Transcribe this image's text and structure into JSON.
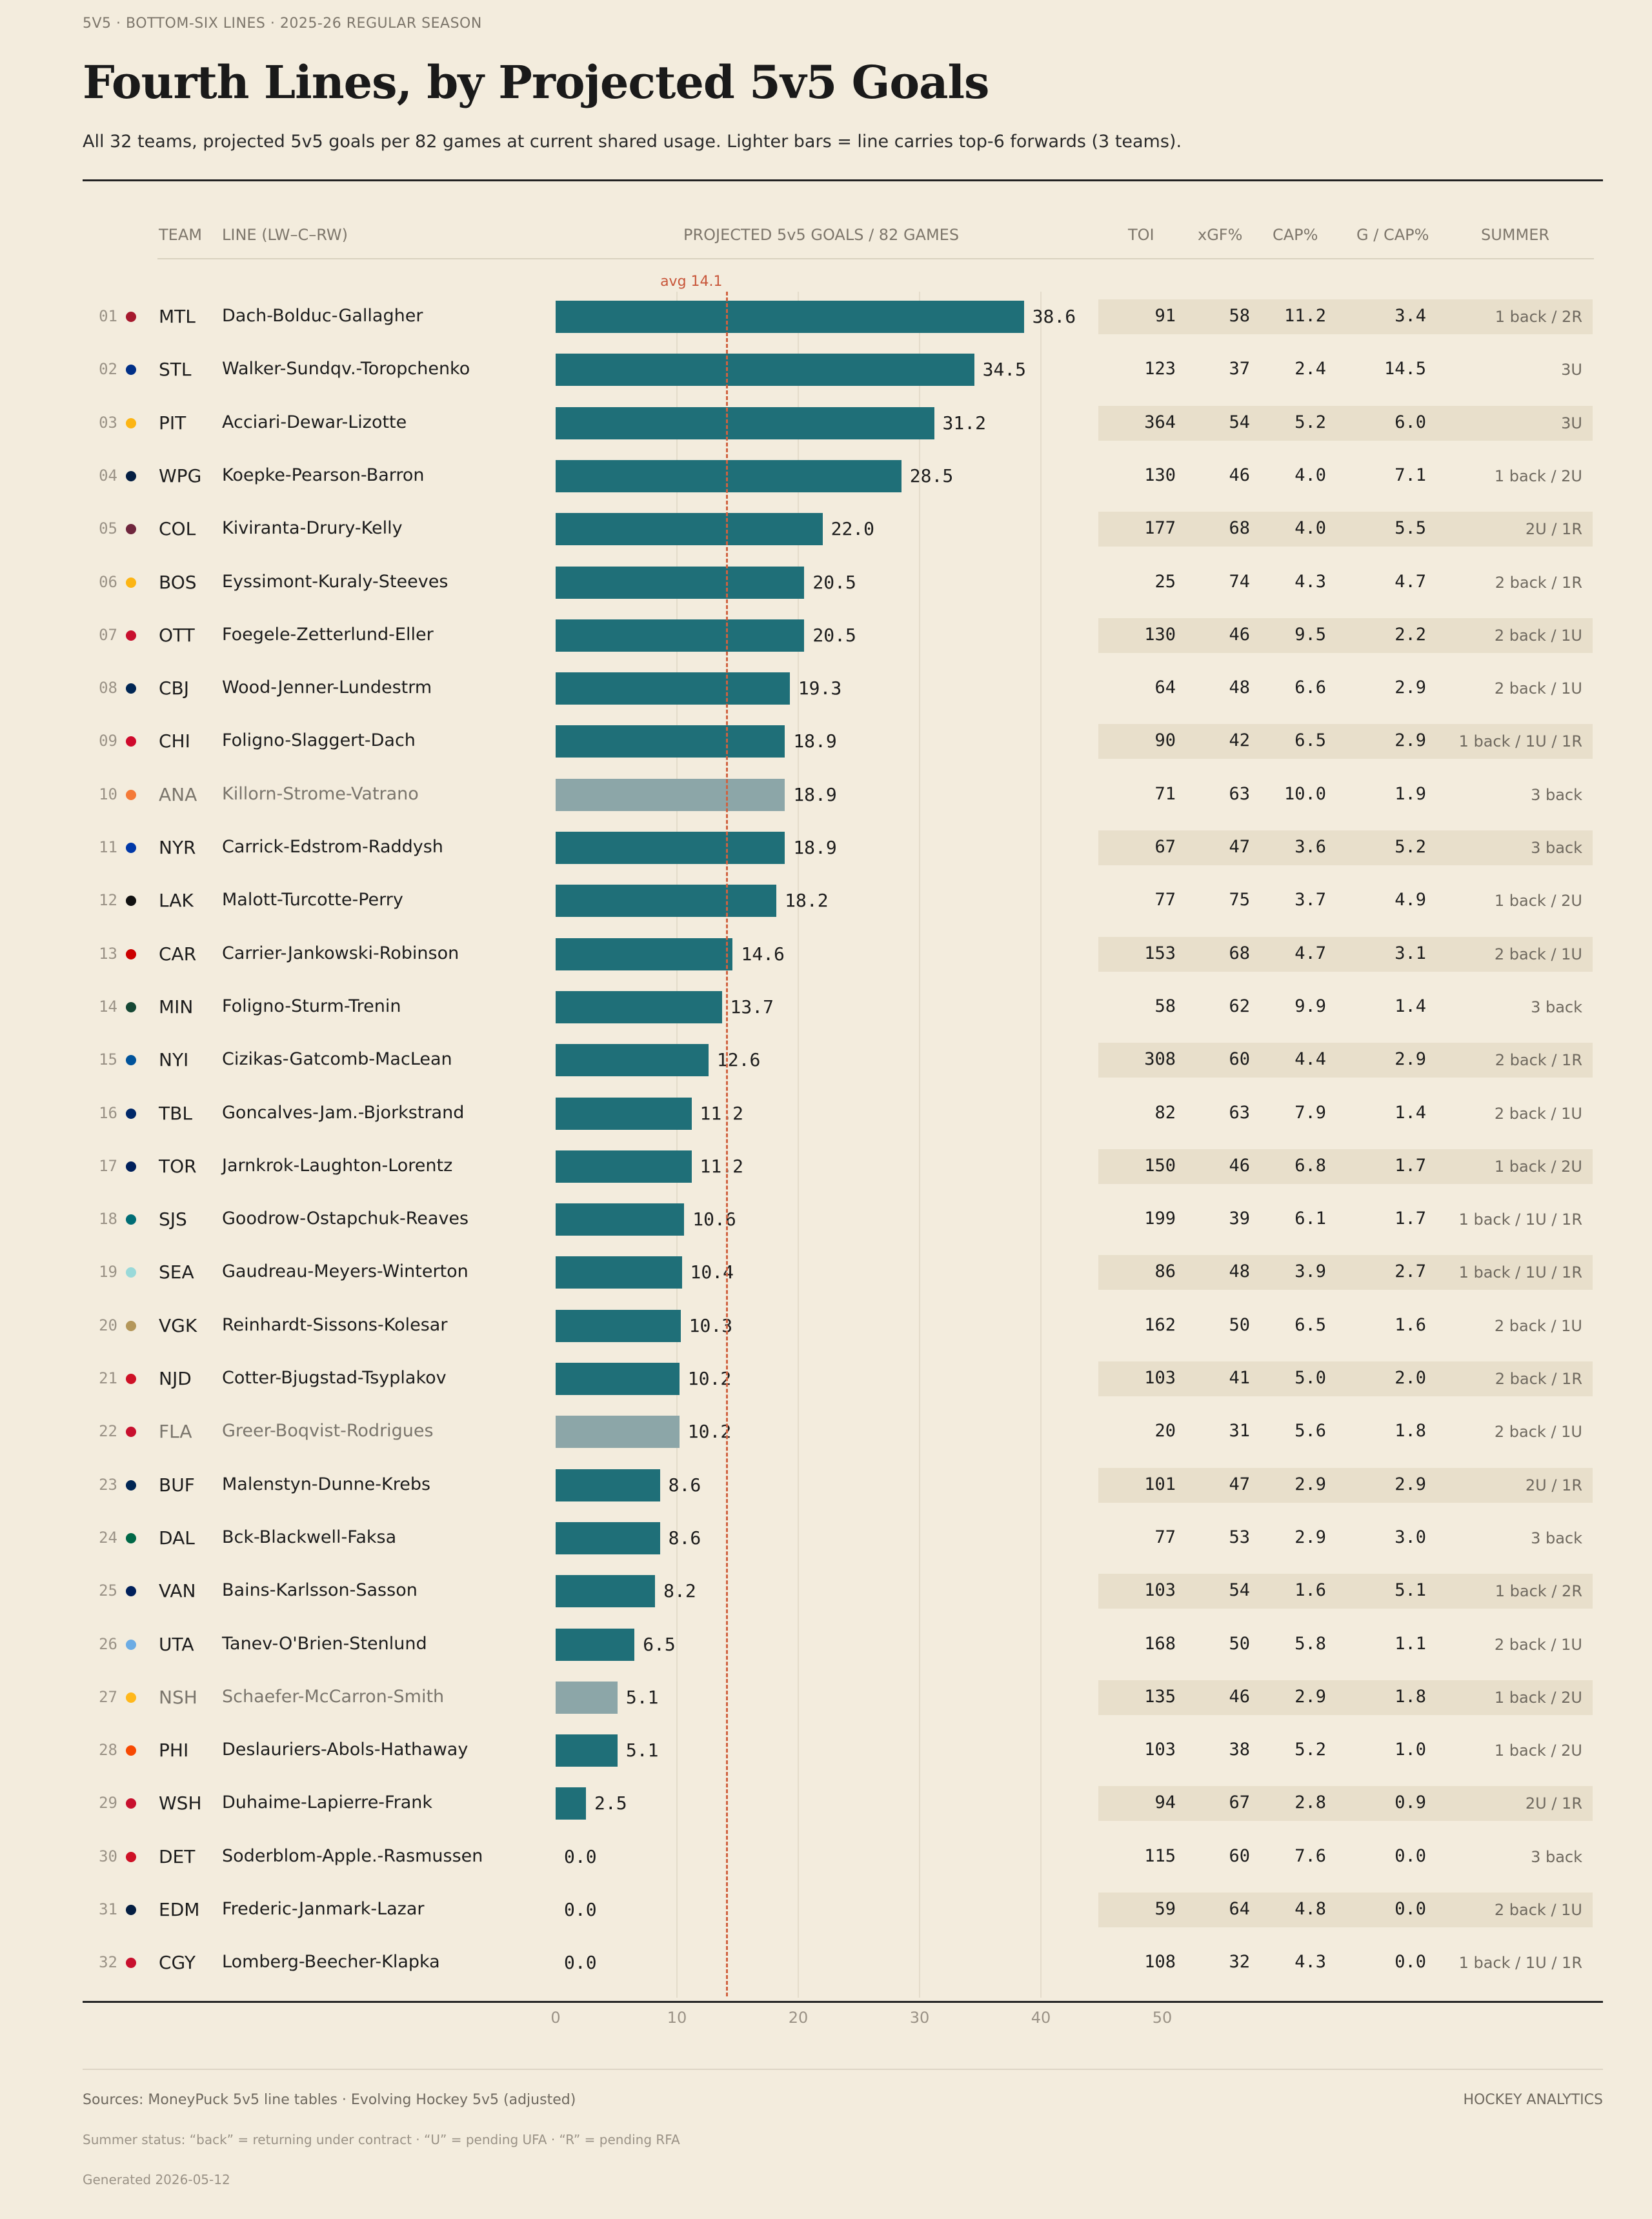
{
  "kicker": "5V5 · BOTTOM-SIX LINES · 2025-26 REGULAR SEASON",
  "title": "Fourth Lines, by Projected 5v5 Goals",
  "subtitle": "All 32 teams, projected 5v5 goals per 82 games at current shared usage. Lighter bars = line carries top-6 forwards (3 teams).",
  "columns": {
    "team": "TEAM",
    "line": "LINE  (LW–C–RW)",
    "chart": "PROJECTED 5v5 GOALS / 82 GAMES",
    "toi": "TOI",
    "xgf": "xGF%",
    "cap": "CAP%",
    "gcap": "G / CAP%",
    "summer": "SUMMER"
  },
  "colors": {
    "bar": "#1f6f78",
    "bar_top6": "#8ca6a8",
    "avg_line": "#d0613f",
    "stripe": "#e8dfcb"
  },
  "avg_label": "avg 14.1",
  "chart_data": {
    "type": "bar",
    "orientation": "horizontal",
    "title": "Fourth Lines, by Projected 5v5 Goals",
    "xlabel": "",
    "x_ticks": [
      "0",
      "10",
      "20",
      "30",
      "40",
      "50"
    ],
    "xlim": [
      0,
      50
    ],
    "grid": true,
    "avg": 14.1,
    "rows": [
      {
        "rank": "01",
        "team": "MTL",
        "dot": "#a6192e",
        "line": "Dach-Bolduc-Gallagher",
        "goals": 38.6,
        "goals_label": "38.6",
        "top6": false,
        "toi": "91",
        "xgf": "58",
        "cap": "11.2",
        "gcap": "3.4",
        "summer": "1 back / 2R"
      },
      {
        "rank": "02",
        "team": "STL",
        "dot": "#002f87",
        "line": "Walker-Sundqv.-Toropchenko",
        "goals": 34.5,
        "goals_label": "34.5",
        "top6": false,
        "toi": "123",
        "xgf": "37",
        "cap": "2.4",
        "gcap": "14.5",
        "summer": "3U"
      },
      {
        "rank": "03",
        "team": "PIT",
        "dot": "#fcb514",
        "line": "Acciari-Dewar-Lizotte",
        "goals": 31.2,
        "goals_label": "31.2",
        "top6": false,
        "toi": "364",
        "xgf": "54",
        "cap": "5.2",
        "gcap": "6.0",
        "summer": "3U"
      },
      {
        "rank": "04",
        "team": "WPG",
        "dot": "#041e42",
        "line": "Koepke-Pearson-Barron",
        "goals": 28.5,
        "goals_label": "28.5",
        "top6": false,
        "toi": "130",
        "xgf": "46",
        "cap": "4.0",
        "gcap": "7.1",
        "summer": "1 back / 2U"
      },
      {
        "rank": "05",
        "team": "COL",
        "dot": "#6f263d",
        "line": "Kiviranta-Drury-Kelly",
        "goals": 22.0,
        "goals_label": "22.0",
        "top6": false,
        "toi": "177",
        "xgf": "68",
        "cap": "4.0",
        "gcap": "5.5",
        "summer": "2U / 1R"
      },
      {
        "rank": "06",
        "team": "BOS",
        "dot": "#fcb514",
        "line": "Eyssimont-Kuraly-Steeves",
        "goals": 20.5,
        "goals_label": "20.5",
        "top6": false,
        "toi": "25",
        "xgf": "74",
        "cap": "4.3",
        "gcap": "4.7",
        "summer": "2 back / 1R"
      },
      {
        "rank": "07",
        "team": "OTT",
        "dot": "#c8102e",
        "line": "Foegele-Zetterlund-Eller",
        "goals": 20.5,
        "goals_label": "20.5",
        "top6": false,
        "toi": "130",
        "xgf": "46",
        "cap": "9.5",
        "gcap": "2.2",
        "summer": "2 back / 1U"
      },
      {
        "rank": "08",
        "team": "CBJ",
        "dot": "#002654",
        "line": "Wood-Jenner-Lundestrm",
        "goals": 19.3,
        "goals_label": "19.3",
        "top6": false,
        "toi": "64",
        "xgf": "48",
        "cap": "6.6",
        "gcap": "2.9",
        "summer": "2 back / 1U"
      },
      {
        "rank": "09",
        "team": "CHI",
        "dot": "#cf0a2c",
        "line": "Foligno-Slaggert-Dach",
        "goals": 18.9,
        "goals_label": "18.9",
        "top6": false,
        "toi": "90",
        "xgf": "42",
        "cap": "6.5",
        "gcap": "2.9",
        "summer": "1 back / 1U / 1R"
      },
      {
        "rank": "10",
        "team": "ANA",
        "dot": "#f47a38",
        "line": "Killorn-Strome-Vatrano",
        "goals": 18.9,
        "goals_label": "18.9",
        "top6": true,
        "toi": "71",
        "xgf": "63",
        "cap": "10.0",
        "gcap": "1.9",
        "summer": "3 back"
      },
      {
        "rank": "11",
        "team": "NYR",
        "dot": "#0038a8",
        "line": "Carrick-Edstrom-Raddysh",
        "goals": 18.9,
        "goals_label": "18.9",
        "top6": false,
        "toi": "67",
        "xgf": "47",
        "cap": "3.6",
        "gcap": "5.2",
        "summer": "3 back"
      },
      {
        "rank": "12",
        "team": "LAK",
        "dot": "#111111",
        "line": "Malott-Turcotte-Perry",
        "goals": 18.2,
        "goals_label": "18.2",
        "top6": false,
        "toi": "77",
        "xgf": "75",
        "cap": "3.7",
        "gcap": "4.9",
        "summer": "1 back / 2U"
      },
      {
        "rank": "13",
        "team": "CAR",
        "dot": "#cc0000",
        "line": "Carrier-Jankowski-Robinson",
        "goals": 14.6,
        "goals_label": "14.6",
        "top6": false,
        "toi": "153",
        "xgf": "68",
        "cap": "4.7",
        "gcap": "3.1",
        "summer": "2 back / 1U"
      },
      {
        "rank": "14",
        "team": "MIN",
        "dot": "#154734",
        "line": "Foligno-Sturm-Trenin",
        "goals": 13.7,
        "goals_label": "13.7",
        "top6": false,
        "toi": "58",
        "xgf": "62",
        "cap": "9.9",
        "gcap": "1.4",
        "summer": "3 back"
      },
      {
        "rank": "15",
        "team": "NYI",
        "dot": "#00539b",
        "line": "Cizikas-Gatcomb-MacLean",
        "goals": 12.6,
        "goals_label": "12.6",
        "top6": false,
        "toi": "308",
        "xgf": "60",
        "cap": "4.4",
        "gcap": "2.9",
        "summer": "2 back / 1R"
      },
      {
        "rank": "16",
        "team": "TBL",
        "dot": "#002868",
        "line": "Goncalves-Jam.-Bjorkstrand",
        "goals": 11.2,
        "goals_label": "11.2",
        "top6": false,
        "toi": "82",
        "xgf": "63",
        "cap": "7.9",
        "gcap": "1.4",
        "summer": "2 back / 1U"
      },
      {
        "rank": "17",
        "team": "TOR",
        "dot": "#00205b",
        "line": "Jarnkrok-Laughton-Lorentz",
        "goals": 11.2,
        "goals_label": "11.2",
        "top6": false,
        "toi": "150",
        "xgf": "46",
        "cap": "6.8",
        "gcap": "1.7",
        "summer": "1 back / 2U"
      },
      {
        "rank": "18",
        "team": "SJS",
        "dot": "#006d75",
        "line": "Goodrow-Ostapchuk-Reaves",
        "goals": 10.6,
        "goals_label": "10.6",
        "top6": false,
        "toi": "199",
        "xgf": "39",
        "cap": "6.1",
        "gcap": "1.7",
        "summer": "1 back / 1U / 1R"
      },
      {
        "rank": "19",
        "team": "SEA",
        "dot": "#99d9d9",
        "line": "Gaudreau-Meyers-Winterton",
        "goals": 10.4,
        "goals_label": "10.4",
        "top6": false,
        "toi": "86",
        "xgf": "48",
        "cap": "3.9",
        "gcap": "2.7",
        "summer": "1 back / 1U / 1R"
      },
      {
        "rank": "20",
        "team": "VGK",
        "dot": "#b4975a",
        "line": "Reinhardt-Sissons-Kolesar",
        "goals": 10.3,
        "goals_label": "10.3",
        "top6": false,
        "toi": "162",
        "xgf": "50",
        "cap": "6.5",
        "gcap": "1.6",
        "summer": "2 back / 1U"
      },
      {
        "rank": "21",
        "team": "NJD",
        "dot": "#ce1126",
        "line": "Cotter-Bjugstad-Tsyplakov",
        "goals": 10.2,
        "goals_label": "10.2",
        "top6": false,
        "toi": "103",
        "xgf": "41",
        "cap": "5.0",
        "gcap": "2.0",
        "summer": "2 back / 1R"
      },
      {
        "rank": "22",
        "team": "FLA",
        "dot": "#c8102e",
        "line": "Greer-Boqvist-Rodrigues",
        "goals": 10.2,
        "goals_label": "10.2",
        "top6": true,
        "toi": "20",
        "xgf": "31",
        "cap": "5.6",
        "gcap": "1.8",
        "summer": "2 back / 1U"
      },
      {
        "rank": "23",
        "team": "BUF",
        "dot": "#002654",
        "line": "Malenstyn-Dunne-Krebs",
        "goals": 8.6,
        "goals_label": "8.6",
        "top6": false,
        "toi": "101",
        "xgf": "47",
        "cap": "2.9",
        "gcap": "2.9",
        "summer": "2U / 1R"
      },
      {
        "rank": "24",
        "team": "DAL",
        "dot": "#006847",
        "line": "Bck-Blackwell-Faksa",
        "goals": 8.6,
        "goals_label": "8.6",
        "top6": false,
        "toi": "77",
        "xgf": "53",
        "cap": "2.9",
        "gcap": "3.0",
        "summer": "3 back"
      },
      {
        "rank": "25",
        "team": "VAN",
        "dot": "#00205b",
        "line": "Bains-Karlsson-Sasson",
        "goals": 8.2,
        "goals_label": "8.2",
        "top6": false,
        "toi": "103",
        "xgf": "54",
        "cap": "1.6",
        "gcap": "5.1",
        "summer": "1 back / 2R"
      },
      {
        "rank": "26",
        "team": "UTA",
        "dot": "#6cace4",
        "line": "Tanev-O'Brien-Stenlund",
        "goals": 6.5,
        "goals_label": "6.5",
        "top6": false,
        "toi": "168",
        "xgf": "50",
        "cap": "5.8",
        "gcap": "1.1",
        "summer": "2 back / 1U"
      },
      {
        "rank": "27",
        "team": "NSH",
        "dot": "#ffb81c",
        "line": "Schaefer-McCarron-Smith",
        "goals": 5.1,
        "goals_label": "5.1",
        "top6": true,
        "toi": "135",
        "xgf": "46",
        "cap": "2.9",
        "gcap": "1.8",
        "summer": "1 back / 2U"
      },
      {
        "rank": "28",
        "team": "PHI",
        "dot": "#f74902",
        "line": "Deslauriers-Abols-Hathaway",
        "goals": 5.1,
        "goals_label": "5.1",
        "top6": false,
        "toi": "103",
        "xgf": "38",
        "cap": "5.2",
        "gcap": "1.0",
        "summer": "1 back / 2U"
      },
      {
        "rank": "29",
        "team": "WSH",
        "dot": "#c8102e",
        "line": "Duhaime-Lapierre-Frank",
        "goals": 2.5,
        "goals_label": "2.5",
        "top6": false,
        "toi": "94",
        "xgf": "67",
        "cap": "2.8",
        "gcap": "0.9",
        "summer": "2U / 1R"
      },
      {
        "rank": "30",
        "team": "DET",
        "dot": "#ce1126",
        "line": "Soderblom-Apple.-Rasmussen",
        "goals": 0.0,
        "goals_label": "0.0",
        "top6": false,
        "toi": "115",
        "xgf": "60",
        "cap": "7.6",
        "gcap": "0.0",
        "summer": "3 back"
      },
      {
        "rank": "31",
        "team": "EDM",
        "dot": "#041e42",
        "line": "Frederic-Janmark-Lazar",
        "goals": 0.0,
        "goals_label": "0.0",
        "top6": false,
        "toi": "59",
        "xgf": "64",
        "cap": "4.8",
        "gcap": "0.0",
        "summer": "2 back / 1U"
      },
      {
        "rank": "32",
        "team": "CGY",
        "dot": "#c8102e",
        "line": "Lomberg-Beecher-Klapka",
        "goals": 0.0,
        "goals_label": "0.0",
        "top6": false,
        "toi": "108",
        "xgf": "32",
        "cap": "4.3",
        "gcap": "0.0",
        "summer": "1 back / 1U / 1R"
      }
    ]
  },
  "footer": {
    "sources": "Sources: MoneyPuck 5v5 line tables · Evolving Hockey 5v5 (adjusted)",
    "brand": "HOCKEY ANALYTICS",
    "note": "Summer status: “back” = returning under contract · “U” = pending UFA · “R” = pending RFA",
    "generated": "Generated 2026-05-12"
  }
}
